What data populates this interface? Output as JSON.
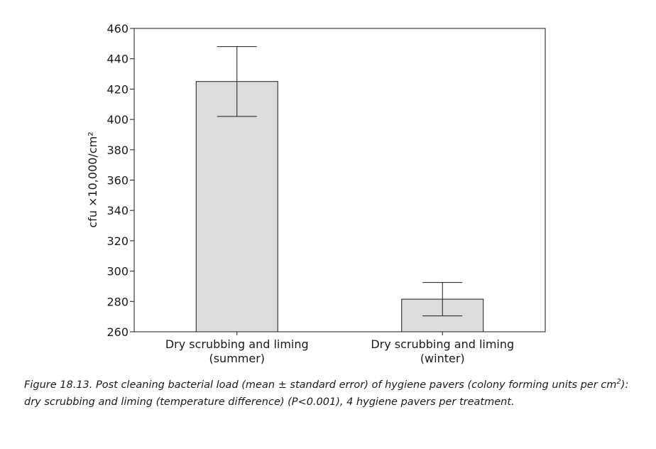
{
  "chart_data": {
    "type": "bar",
    "title": "",
    "xlabel": "",
    "ylabel": "cfu ×10,000/cm²",
    "ylim": [
      260,
      460
    ],
    "yticks": [
      260,
      280,
      300,
      320,
      340,
      360,
      380,
      400,
      420,
      440,
      460
    ],
    "categories": [
      {
        "line1": "Dry scrubbing and liming",
        "line2": "(summer)"
      },
      {
        "line1": "Dry scrubbing and liming",
        "line2": "(winter)"
      }
    ],
    "values": [
      425,
      281.5
    ],
    "error_low": [
      402,
      270.5
    ],
    "error_high": [
      448,
      292.5
    ],
    "bar_color": "#dcdcdc",
    "line_color": "#1a1a1a"
  },
  "caption": {
    "part1": "Figure 18.13. Post cleaning bacterial load (mean ± standard error) of hygiene pavers (colony forming units per cm",
    "sup": "2",
    "part2": "): dry scrubbing and liming (temperature difference) (P<0.001), 4 hygiene pavers per treatment."
  }
}
